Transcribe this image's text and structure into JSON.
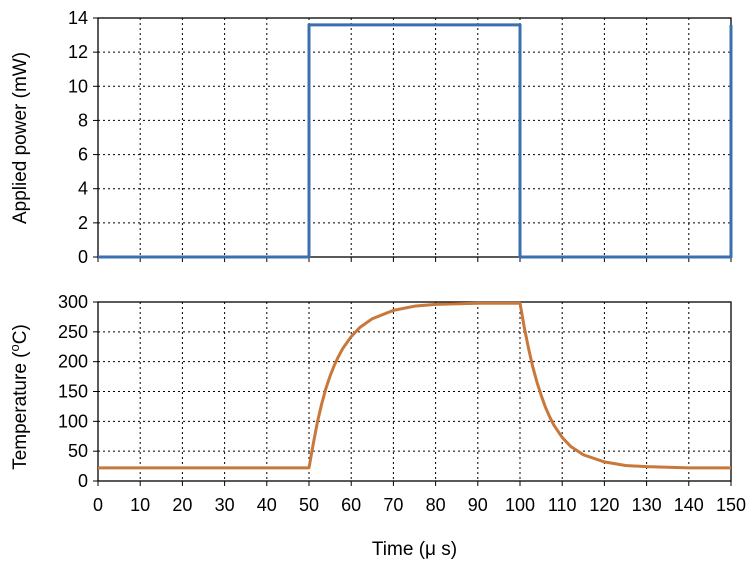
{
  "chart_data": [
    {
      "type": "line",
      "xlim": [
        0,
        150
      ],
      "ylim": [
        0,
        14
      ],
      "xticks": [
        0,
        10,
        20,
        30,
        40,
        50,
        60,
        70,
        80,
        90,
        100,
        110,
        120,
        130,
        140,
        150
      ],
      "yticks": [
        "0",
        "2",
        "4",
        "6",
        "8",
        "10",
        "12",
        "14"
      ],
      "ylabel": "Applied power (mW)",
      "xlabel": "",
      "grid": true,
      "series": [
        {
          "color": "#3a6fb0",
          "x": [
            0,
            50,
            50,
            100,
            100,
            150,
            150
          ],
          "y": [
            0,
            0,
            13.6,
            13.6,
            0,
            0,
            13.6
          ]
        }
      ]
    },
    {
      "type": "line",
      "xlim": [
        0,
        150
      ],
      "ylim": [
        0,
        300
      ],
      "xticks": [
        "0",
        "10",
        "20",
        "30",
        "40",
        "50",
        "60",
        "70",
        "80",
        "90",
        "100",
        "110",
        "120",
        "130",
        "140",
        "150"
      ],
      "yticks": [
        "0",
        "50",
        "100",
        "150",
        "200",
        "250",
        "300"
      ],
      "ylabel_parts": [
        "Temperature (",
        "o",
        "C)"
      ],
      "xlabel": "Time (μ s)",
      "grid": true,
      "series": [
        {
          "color": "#c8783a",
          "x": [
            0,
            50,
            51,
            52,
            53,
            54,
            55,
            56,
            57,
            58,
            60,
            62,
            65,
            70,
            75,
            80,
            90,
            100,
            101,
            102,
            103,
            104,
            105,
            106,
            107,
            108,
            110,
            112,
            115,
            120,
            125,
            130,
            140,
            150
          ],
          "y": [
            22,
            22,
            62,
            99,
            129,
            155,
            176,
            194,
            209,
            222,
            242,
            257,
            272,
            286,
            293,
            296,
            298,
            298,
            258,
            223,
            192,
            166,
            144,
            124,
            108,
            94,
            73,
            58,
            44,
            32,
            26,
            24,
            22,
            22
          ]
        }
      ]
    }
  ]
}
